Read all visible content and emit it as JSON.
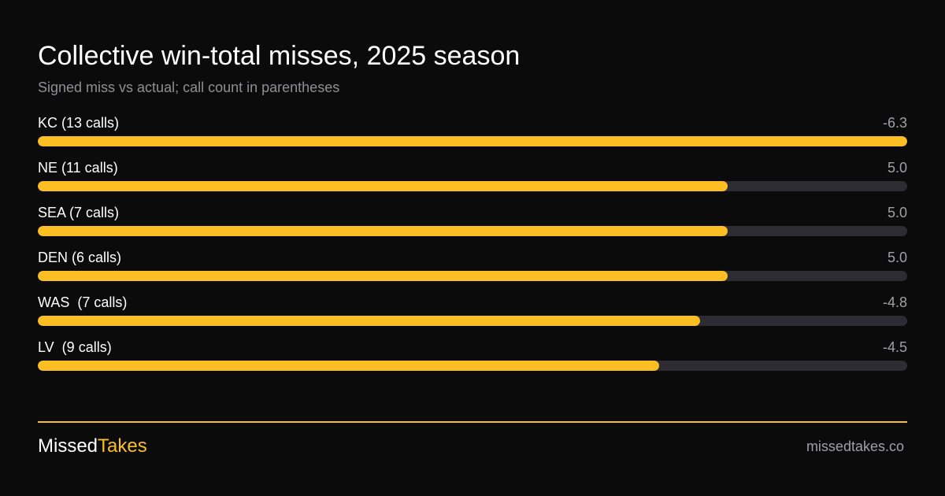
{
  "colors": {
    "background": "#0b0b0b",
    "accent": "#fbbf24",
    "track": "#2d2c33",
    "muted_text": "#8f8f95"
  },
  "chart_data": {
    "type": "bar",
    "orientation": "horizontal",
    "title": "Collective win-total misses, 2025 season",
    "subtitle": "Signed miss vs actual; call count in parentheses",
    "categories": [
      "KC (13 calls)",
      "NE (11 calls)",
      "SEA (7 calls)",
      "DEN (6 calls)",
      "WAS  (7 calls)",
      "LV  (9 calls)"
    ],
    "value_labels": [
      "-6.3",
      "5.0",
      "5.0",
      "5.0",
      "-4.8",
      "-4.5"
    ],
    "values": [
      -6.3,
      5.0,
      5.0,
      5.0,
      -4.8,
      -4.5
    ],
    "bar_scale": "absolute value",
    "xlim": [
      0,
      6.3
    ],
    "grid": false,
    "legend": "none"
  },
  "footer": {
    "brand_part1": "Missed",
    "brand_part2": "Takes",
    "site": "missedtakes.co"
  }
}
